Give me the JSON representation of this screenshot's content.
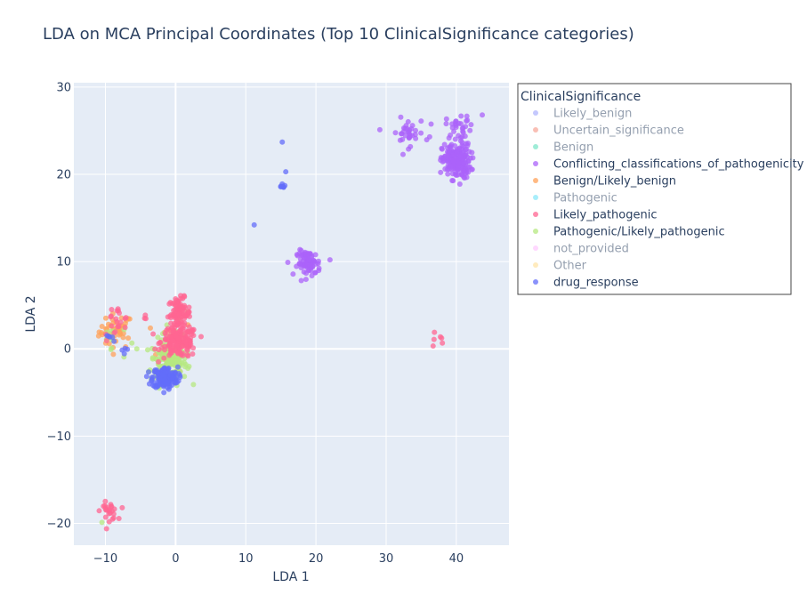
{
  "chart_data": {
    "type": "scatter",
    "title": "LDA on MCA Principal Coordinates (Top 10 ClinicalSignificance categories)",
    "xlabel": "LDA 1",
    "ylabel": "LDA 2",
    "xlim": [
      -14.5,
      47.5
    ],
    "ylim": [
      -22.5,
      30.5
    ],
    "x_ticks": [
      -10,
      0,
      10,
      20,
      30,
      40
    ],
    "y_ticks": [
      -20,
      -10,
      0,
      10,
      20,
      30
    ],
    "grid": true,
    "legend": {
      "title": "ClinicalSignificance",
      "placement": "right",
      "entries": [
        {
          "name": "Likely_benign",
          "color": "#636efa",
          "visible": false
        },
        {
          "name": "Uncertain_significance",
          "color": "#EF553B",
          "visible": false
        },
        {
          "name": "Benign",
          "color": "#00cc96",
          "visible": false
        },
        {
          "name": "Conflicting_classifications_of_pathogenicity",
          "color": "#ab63fa",
          "visible": true
        },
        {
          "name": "Benign/Likely_benign",
          "color": "#FFA15A",
          "visible": true
        },
        {
          "name": "Pathogenic",
          "color": "#19d3f3",
          "visible": false
        },
        {
          "name": "Likely_pathogenic",
          "color": "#FF6692",
          "visible": true
        },
        {
          "name": "Pathogenic/Likely_pathogenic",
          "color": "#B6E880",
          "visible": true
        },
        {
          "name": "not_provided",
          "color": "#FF97FF",
          "visible": false
        },
        {
          "name": "Other",
          "color": "#FECB52",
          "visible": false
        },
        {
          "name": "drug_response",
          "color": "#636efa",
          "visible": true
        }
      ]
    },
    "series": [
      {
        "name": "Benign/Likely_benign",
        "color": "#FFA15A",
        "clusters": [
          {
            "cx": -8.5,
            "cy": 2.0,
            "sx": 1.2,
            "sy": 1.0,
            "n": 45
          },
          {
            "cx": -0.5,
            "cy": 0.5,
            "sx": 1.5,
            "sy": 1.5,
            "n": 15
          }
        ]
      },
      {
        "name": "Pathogenic/Likely_pathogenic",
        "color": "#B6E880",
        "clusters": [
          {
            "cx": -1.0,
            "cy": -1.5,
            "sx": 1.3,
            "sy": 1.3,
            "n": 160
          },
          {
            "cx": -9.0,
            "cy": 1.0,
            "sx": 1.0,
            "sy": 1.2,
            "n": 12
          },
          {
            "cx": 0.5,
            "cy": 2.5,
            "sx": 0.6,
            "sy": 1.0,
            "n": 15
          },
          {
            "cx": -10.5,
            "cy": -19.7,
            "sx": 0.2,
            "sy": 0.2,
            "n": 1
          }
        ]
      },
      {
        "name": "Likely_pathogenic",
        "color": "#FF6692",
        "clusters": [
          {
            "cx": 0.5,
            "cy": 4.0,
            "sx": 0.8,
            "sy": 0.9,
            "n": 90
          },
          {
            "cx": 0.5,
            "cy": 0.8,
            "sx": 1.3,
            "sy": 0.9,
            "n": 160
          },
          {
            "cx": -8.5,
            "cy": 3.0,
            "sx": 1.0,
            "sy": 1.0,
            "n": 20
          },
          {
            "cx": -9.5,
            "cy": -18.6,
            "sx": 0.6,
            "sy": 0.5,
            "n": 25
          },
          {
            "cx": 37.2,
            "cy": 1.0,
            "sx": 0.6,
            "sy": 0.6,
            "n": 6
          },
          {
            "cx": -4.5,
            "cy": 3.6,
            "sx": 0.3,
            "sy": 0.3,
            "n": 3
          }
        ]
      },
      {
        "name": "drug_response",
        "color": "#636efa",
        "clusters": [
          {
            "cx": -1.5,
            "cy": -3.3,
            "sx": 0.9,
            "sy": 0.6,
            "n": 170
          },
          {
            "cx": 15.2,
            "cy": 18.8,
            "sx": 0.2,
            "sy": 0.2,
            "n": 8
          },
          {
            "cx": -9.5,
            "cy": 1.0,
            "sx": 0.5,
            "sy": 0.4,
            "n": 5
          },
          {
            "cx": -7.5,
            "cy": 0.0,
            "sx": 0.5,
            "sy": 0.5,
            "n": 4
          }
        ],
        "extra_points": [
          [
            15.2,
            23.7
          ],
          [
            15.7,
            20.3
          ],
          [
            11.2,
            14.2
          ]
        ]
      },
      {
        "name": "Conflicting_classifications_of_pathogenicity",
        "color": "#ab63fa",
        "clusters": [
          {
            "cx": 40.0,
            "cy": 21.5,
            "sx": 1.0,
            "sy": 1.0,
            "n": 200
          },
          {
            "cx": 40.5,
            "cy": 25.5,
            "sx": 1.0,
            "sy": 0.7,
            "n": 30
          },
          {
            "cx": 33.0,
            "cy": 24.8,
            "sx": 1.3,
            "sy": 0.8,
            "n": 35
          },
          {
            "cx": 19.0,
            "cy": 9.8,
            "sx": 0.8,
            "sy": 0.7,
            "n": 80
          }
        ],
        "extra_points": [
          [
            43.7,
            26.8
          ],
          [
            22.0,
            10.2
          ],
          [
            17.3,
            10.8
          ],
          [
            36.2,
            24.3
          ]
        ]
      }
    ]
  }
}
